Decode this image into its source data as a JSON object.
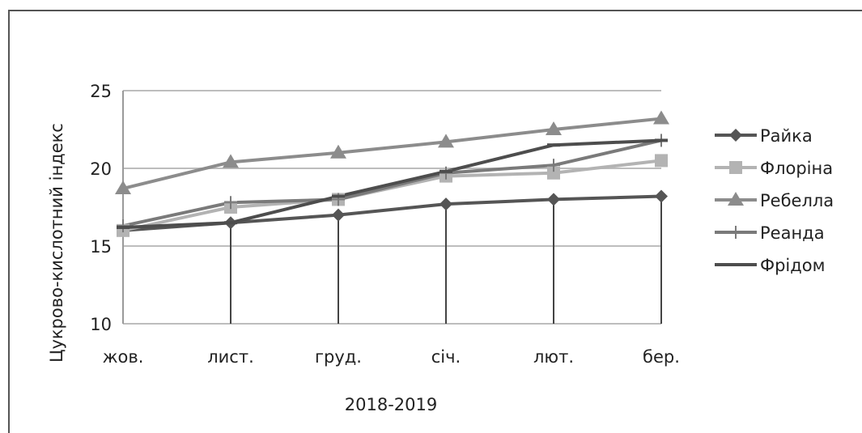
{
  "chart_data": {
    "type": "line",
    "xlabel": "2018-2019",
    "ylabel": "Цукрово-кислотний індекс",
    "categories": [
      "жов.",
      "лист.",
      "груд.",
      "січ.",
      "лют.",
      "бер."
    ],
    "ylim": [
      10,
      25
    ],
    "yticks": [
      10,
      15,
      20,
      25
    ],
    "grid": true,
    "legend_position": "right",
    "series": [
      {
        "name": "Райка",
        "marker": "diamond",
        "color": "#555555",
        "values": [
          16.0,
          16.5,
          17.0,
          17.7,
          18.0,
          18.2
        ]
      },
      {
        "name": "Флоріна",
        "marker": "square",
        "color": "#b3b3b3",
        "values": [
          16.0,
          17.5,
          18.0,
          19.5,
          19.7,
          20.5
        ]
      },
      {
        "name": "Ребелла",
        "marker": "triangle",
        "color": "#8c8c8c",
        "values": [
          18.7,
          20.4,
          21.0,
          21.7,
          22.5,
          23.2
        ]
      },
      {
        "name": "Реанда",
        "marker": "plus",
        "color": "#7a7a7a",
        "values": [
          16.3,
          17.8,
          18.0,
          19.7,
          20.2,
          21.8
        ]
      },
      {
        "name": "Фрідом",
        "marker": "dash",
        "color": "#4d4d4d",
        "values": [
          16.2,
          16.5,
          18.2,
          19.8,
          21.5,
          21.8
        ]
      }
    ]
  }
}
